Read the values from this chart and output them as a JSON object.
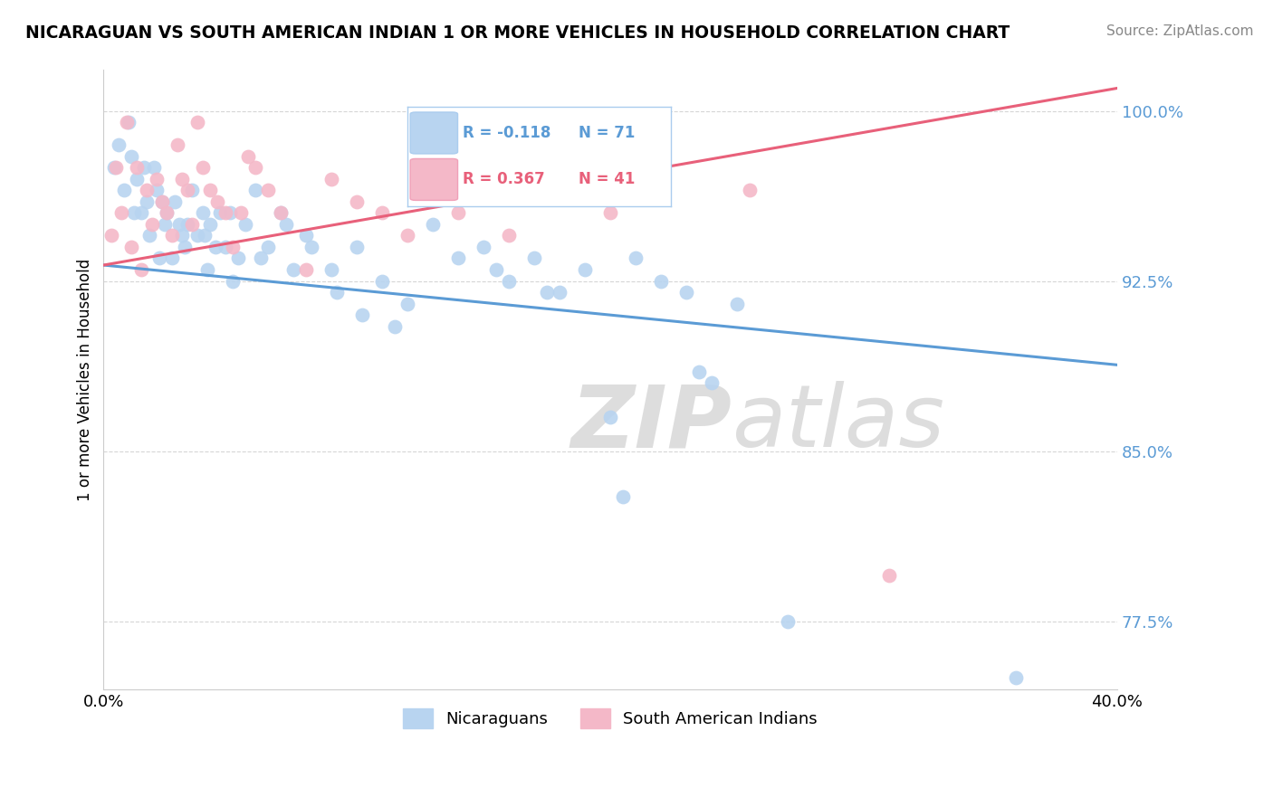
{
  "title": "NICARAGUAN VS SOUTH AMERICAN INDIAN 1 OR MORE VEHICLES IN HOUSEHOLD CORRELATION CHART",
  "source": "Source: ZipAtlas.com",
  "legend_blue_r": "R = -0.118",
  "legend_blue_n": "N = 71",
  "legend_pink_r": "R = 0.367",
  "legend_pink_n": "N = 41",
  "legend_label_blue": "Nicaraguans",
  "legend_label_pink": "South American Indians",
  "xmin": 0.0,
  "xmax": 40.0,
  "ymin": 74.5,
  "ymax": 101.8,
  "blue_color": "#b8d4f0",
  "blue_line_color": "#5b9bd5",
  "pink_color": "#f4b8c8",
  "pink_line_color": "#e8607a",
  "blue_trend_x0": 0.0,
  "blue_trend_x1": 40.0,
  "blue_trend_y0": 93.2,
  "blue_trend_y1": 88.8,
  "pink_trend_x0": 0.0,
  "pink_trend_x1": 40.0,
  "pink_trend_y0": 93.2,
  "pink_trend_y1": 101.0,
  "blue_scatter_x": [
    0.4,
    0.6,
    0.8,
    1.0,
    1.1,
    1.3,
    1.5,
    1.6,
    1.7,
    1.8,
    2.0,
    2.1,
    2.3,
    2.4,
    2.5,
    2.7,
    2.8,
    3.0,
    3.2,
    3.3,
    3.5,
    3.7,
    3.9,
    4.0,
    4.2,
    4.4,
    4.6,
    4.8,
    5.0,
    5.3,
    5.6,
    6.0,
    6.5,
    7.0,
    7.5,
    8.0,
    9.0,
    10.0,
    11.0,
    12.0,
    13.0,
    14.0,
    15.0,
    16.0,
    17.0,
    18.0,
    20.0,
    22.0,
    23.0,
    25.0,
    1.2,
    2.2,
    3.1,
    4.1,
    5.1,
    6.2,
    7.2,
    8.2,
    9.2,
    10.2,
    11.5,
    13.5,
    15.5,
    17.5,
    20.5,
    23.5,
    19.0,
    21.0,
    24.0,
    27.0,
    36.0
  ],
  "blue_scatter_y": [
    97.5,
    98.5,
    96.5,
    99.5,
    98.0,
    97.0,
    95.5,
    97.5,
    96.0,
    94.5,
    97.5,
    96.5,
    96.0,
    95.0,
    95.5,
    93.5,
    96.0,
    95.0,
    94.0,
    95.0,
    96.5,
    94.5,
    95.5,
    94.5,
    95.0,
    94.0,
    95.5,
    94.0,
    95.5,
    93.5,
    95.0,
    96.5,
    94.0,
    95.5,
    93.0,
    94.5,
    93.0,
    94.0,
    92.5,
    91.5,
    95.0,
    93.5,
    94.0,
    92.5,
    93.5,
    92.0,
    86.5,
    92.5,
    92.0,
    91.5,
    95.5,
    93.5,
    94.5,
    93.0,
    92.5,
    93.5,
    95.0,
    94.0,
    92.0,
    91.0,
    90.5,
    96.5,
    93.0,
    92.0,
    83.0,
    88.5,
    93.0,
    93.5,
    88.0,
    77.5,
    75.0
  ],
  "pink_scatter_x": [
    0.3,
    0.5,
    0.7,
    0.9,
    1.1,
    1.3,
    1.5,
    1.7,
    1.9,
    2.1,
    2.3,
    2.5,
    2.7,
    2.9,
    3.1,
    3.3,
    3.5,
    3.7,
    3.9,
    4.2,
    4.5,
    4.8,
    5.1,
    5.4,
    5.7,
    6.0,
    6.5,
    7.0,
    8.0,
    9.0,
    10.0,
    11.0,
    12.0,
    14.0,
    15.0,
    16.0,
    17.5,
    18.5,
    20.0,
    25.5,
    31.0
  ],
  "pink_scatter_y": [
    94.5,
    97.5,
    95.5,
    99.5,
    94.0,
    97.5,
    93.0,
    96.5,
    95.0,
    97.0,
    96.0,
    95.5,
    94.5,
    98.5,
    97.0,
    96.5,
    95.0,
    99.5,
    97.5,
    96.5,
    96.0,
    95.5,
    94.0,
    95.5,
    98.0,
    97.5,
    96.5,
    95.5,
    93.0,
    97.0,
    96.0,
    95.5,
    94.5,
    95.5,
    97.0,
    94.5,
    99.0,
    96.5,
    95.5,
    96.5,
    79.5
  ]
}
